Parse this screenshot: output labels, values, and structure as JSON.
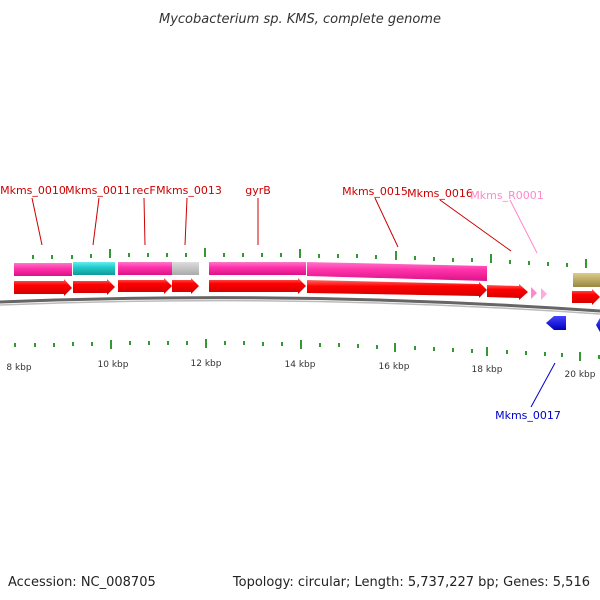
{
  "title": "Mycobacterium sp. KMS, complete genome",
  "footer": {
    "accession": "Accession: NC_008705",
    "summary": "Topology: circular; Length: 5,737,227 bp; Genes: 5,516"
  },
  "colors": {
    "cds_red": "#ff0000",
    "gene_magenta": "#ff33aa",
    "gene_cyan": "#22cccc",
    "gene_gray": "#bbbbbb",
    "gene_tan": "#bbaa66",
    "rna_pink": "#ff88cc",
    "reverse_blue": "#0000ee",
    "tick_green": "#339933",
    "backbone": "#888888"
  },
  "scale_labels": [
    "8 kbp",
    "10 kbp",
    "12 kbp",
    "14 kbp",
    "16 kbp",
    "18 kbp",
    "20 kbp"
  ],
  "gene_labels": [
    {
      "text": "Mkms_0010",
      "color": "#cc0000"
    },
    {
      "text": "Mkms_0011",
      "color": "#cc0000"
    },
    {
      "text": "recF",
      "color": "#cc0000"
    },
    {
      "text": "Mkms_0013",
      "color": "#cc0000"
    },
    {
      "text": "gyrB",
      "color": "#cc0000"
    },
    {
      "text": "Mkms_0015",
      "color": "#cc0000"
    },
    {
      "text": "Mkms_0016",
      "color": "#cc0000"
    },
    {
      "text": "Mkms_R0001",
      "color": "#ff88cc"
    },
    {
      "text": "Mkms_0017",
      "color": "#0000cc"
    }
  ]
}
